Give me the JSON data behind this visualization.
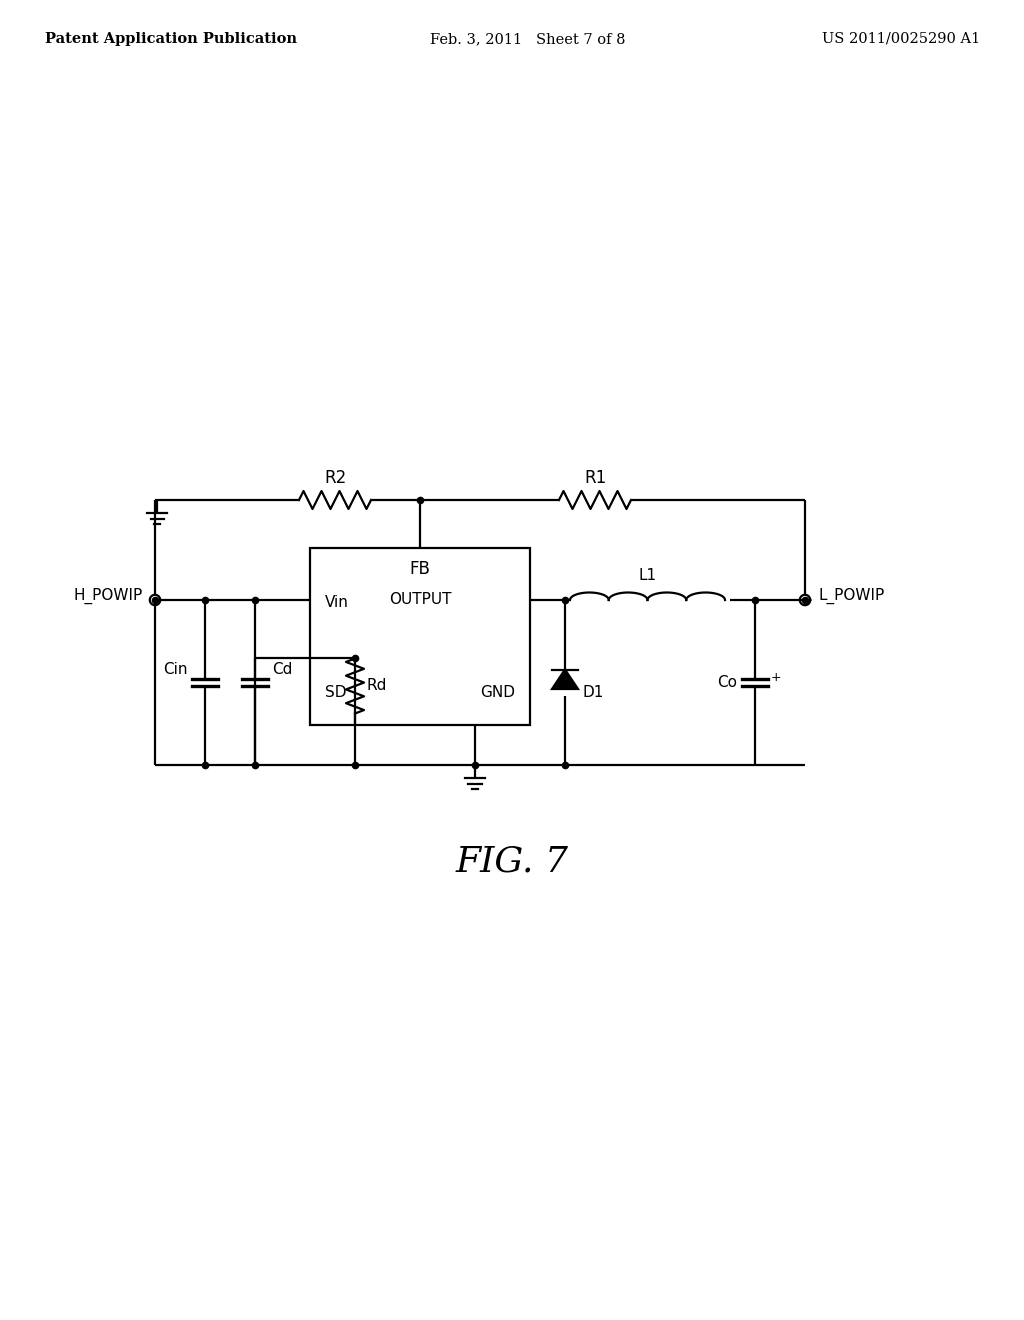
{
  "header_left": "Patent Application Publication",
  "header_mid": "Feb. 3, 2011   Sheet 7 of 8",
  "header_right": "US 2011/0025290 A1",
  "fig_label": "FIG. 7",
  "background_color": "#ffffff",
  "line_color": "#000000",
  "text_color": "#000000",
  "header_fontsize": 10.5,
  "label_fontsize": 12,
  "fig_label_fontsize": 26,
  "lw": 1.6
}
